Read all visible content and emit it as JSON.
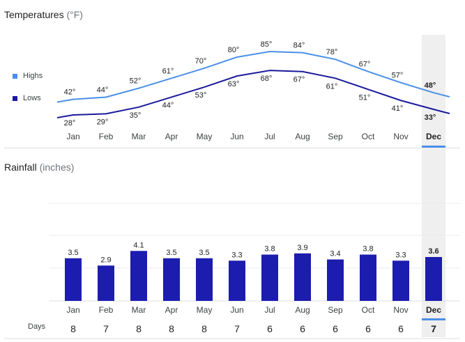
{
  "temperatures": {
    "title": "Temperatures",
    "unit": "(°F)",
    "legend": [
      {
        "label": "Highs",
        "color": "#4a8fe7"
      },
      {
        "label": "Lows",
        "color": "#1a1a9c"
      }
    ]
  },
  "rainfall": {
    "title": "Rainfall",
    "unit": "(inches)"
  },
  "days_label": "Days",
  "selected_month_index": 11,
  "colors": {
    "highs": "#4a8fe7",
    "lows": "#1a1a9c",
    "bars": "#1c1caf",
    "selected_bg": "#efefef",
    "selected_bar": "#4a8fe7"
  },
  "chart_data": [
    {
      "type": "line",
      "title": "Temperatures",
      "categories": [
        "Jan",
        "Feb",
        "Mar",
        "Apr",
        "May",
        "Jun",
        "Jul",
        "Aug",
        "Sep",
        "Oct",
        "Nov",
        "Dec"
      ],
      "series": [
        {
          "name": "Highs",
          "values": [
            42,
            44,
            52,
            61,
            70,
            80,
            85,
            84,
            78,
            67,
            57,
            48
          ],
          "labels": [
            "42°",
            "44°",
            "52°",
            "61°",
            "70°",
            "80°",
            "85°",
            "84°",
            "78°",
            "67°",
            "57°",
            "48°"
          ]
        },
        {
          "name": "Lows",
          "values": [
            28,
            29,
            35,
            44,
            53,
            63,
            68,
            67,
            61,
            51,
            41,
            33
          ],
          "labels": [
            "28°",
            "29°",
            "35°",
            "44°",
            "53°",
            "63°",
            "68°",
            "67°",
            "61°",
            "51°",
            "41°",
            "33°"
          ]
        }
      ],
      "legend": "left"
    },
    {
      "type": "bar",
      "title": "Rainfall",
      "categories": [
        "Jan",
        "Feb",
        "Mar",
        "Apr",
        "May",
        "Jun",
        "Jul",
        "Aug",
        "Sep",
        "Oct",
        "Nov",
        "Dec"
      ],
      "values": [
        3.5,
        2.9,
        4.1,
        3.5,
        3.5,
        3.3,
        3.8,
        3.9,
        3.4,
        3.8,
        3.3,
        3.6
      ],
      "labels": [
        "3.5",
        "2.9",
        "4.1",
        "3.5",
        "3.5",
        "3.3",
        "3.8",
        "3.9",
        "3.4",
        "3.8",
        "3.3",
        "3.6"
      ],
      "grid": true
    },
    {
      "type": "table",
      "title": "Days",
      "categories": [
        "Jan",
        "Feb",
        "Mar",
        "Apr",
        "May",
        "Jun",
        "Jul",
        "Aug",
        "Sep",
        "Oct",
        "Nov",
        "Dec"
      ],
      "values": [
        "8",
        "7",
        "8",
        "8",
        "8",
        "7",
        "6",
        "6",
        "6",
        "6",
        "6",
        "7"
      ]
    }
  ]
}
